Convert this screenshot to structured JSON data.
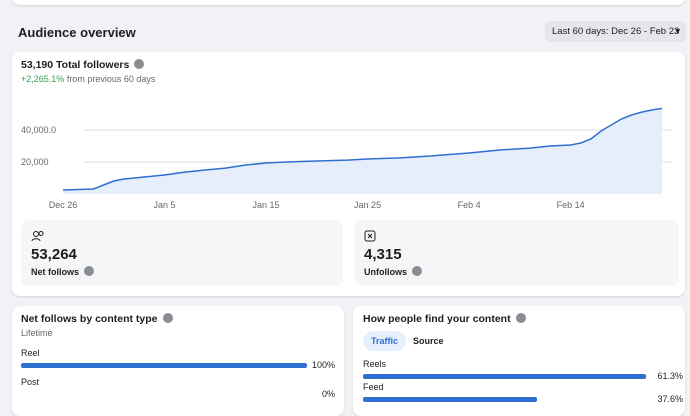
{
  "header": {
    "title": "Audience overview",
    "date_range": "Last 60 days: Dec 26 - Feb 23"
  },
  "followers": {
    "total": "53,190 Total followers",
    "change": "+2,265.1%",
    "change_text": "from previous 60 days",
    "chart_data": {
      "type": "area",
      "color": "#2f6fd0",
      "grid": true,
      "x": [
        0,
        3,
        4,
        5,
        6,
        8,
        10,
        12,
        14,
        16,
        18,
        20,
        22,
        25,
        28,
        30,
        33,
        36,
        40,
        43,
        46,
        48,
        50,
        51,
        52,
        53,
        54,
        55,
        56,
        57,
        58,
        59
      ],
      "values": [
        2500,
        3100,
        5600,
        8100,
        9400,
        10600,
        11900,
        13700,
        15000,
        16200,
        18100,
        19400,
        20000,
        20600,
        21200,
        21900,
        22500,
        23700,
        25600,
        27500,
        28700,
        30000,
        30600,
        31900,
        34400,
        39400,
        43100,
        46900,
        49400,
        51200,
        52500,
        53500
      ],
      "xlim": [
        0,
        59
      ],
      "xticks": [
        {
          "value": 0,
          "label": "Dec 26"
        },
        {
          "value": 10,
          "label": "Jan 5"
        },
        {
          "value": 20,
          "label": "Jan 15"
        },
        {
          "value": 30,
          "label": "Jan 25"
        },
        {
          "value": 40,
          "label": "Feb 4"
        },
        {
          "value": 50,
          "label": "Feb 14"
        }
      ],
      "ylim": [
        0,
        60000
      ],
      "yticks": [
        {
          "value": 20000,
          "label": "20,000"
        },
        {
          "value": 40000,
          "label": "40,000.0"
        }
      ]
    }
  },
  "stats": [
    {
      "value": "53,264",
      "label": "Net follows"
    },
    {
      "value": "4,315",
      "label": "Unfollows"
    }
  ],
  "content_type": {
    "title": "Net follows by content type",
    "subtitle": "Lifetime",
    "chart_data": {
      "type": "bar",
      "color": "#2f6fd0",
      "categories": [
        "Reel",
        "Post"
      ],
      "values": [
        100,
        0
      ],
      "value_labels": [
        "100%",
        "0%"
      ]
    }
  },
  "discovery": {
    "title": "How people find your content",
    "tabs": [
      "Traffic",
      "Source"
    ],
    "chart_data": {
      "type": "bar",
      "color": "#2f6fd0",
      "categories": [
        "Reels",
        "Feed"
      ],
      "values": [
        61.3,
        37.6
      ],
      "value_labels": [
        "61.3%",
        "37.6%"
      ]
    }
  }
}
